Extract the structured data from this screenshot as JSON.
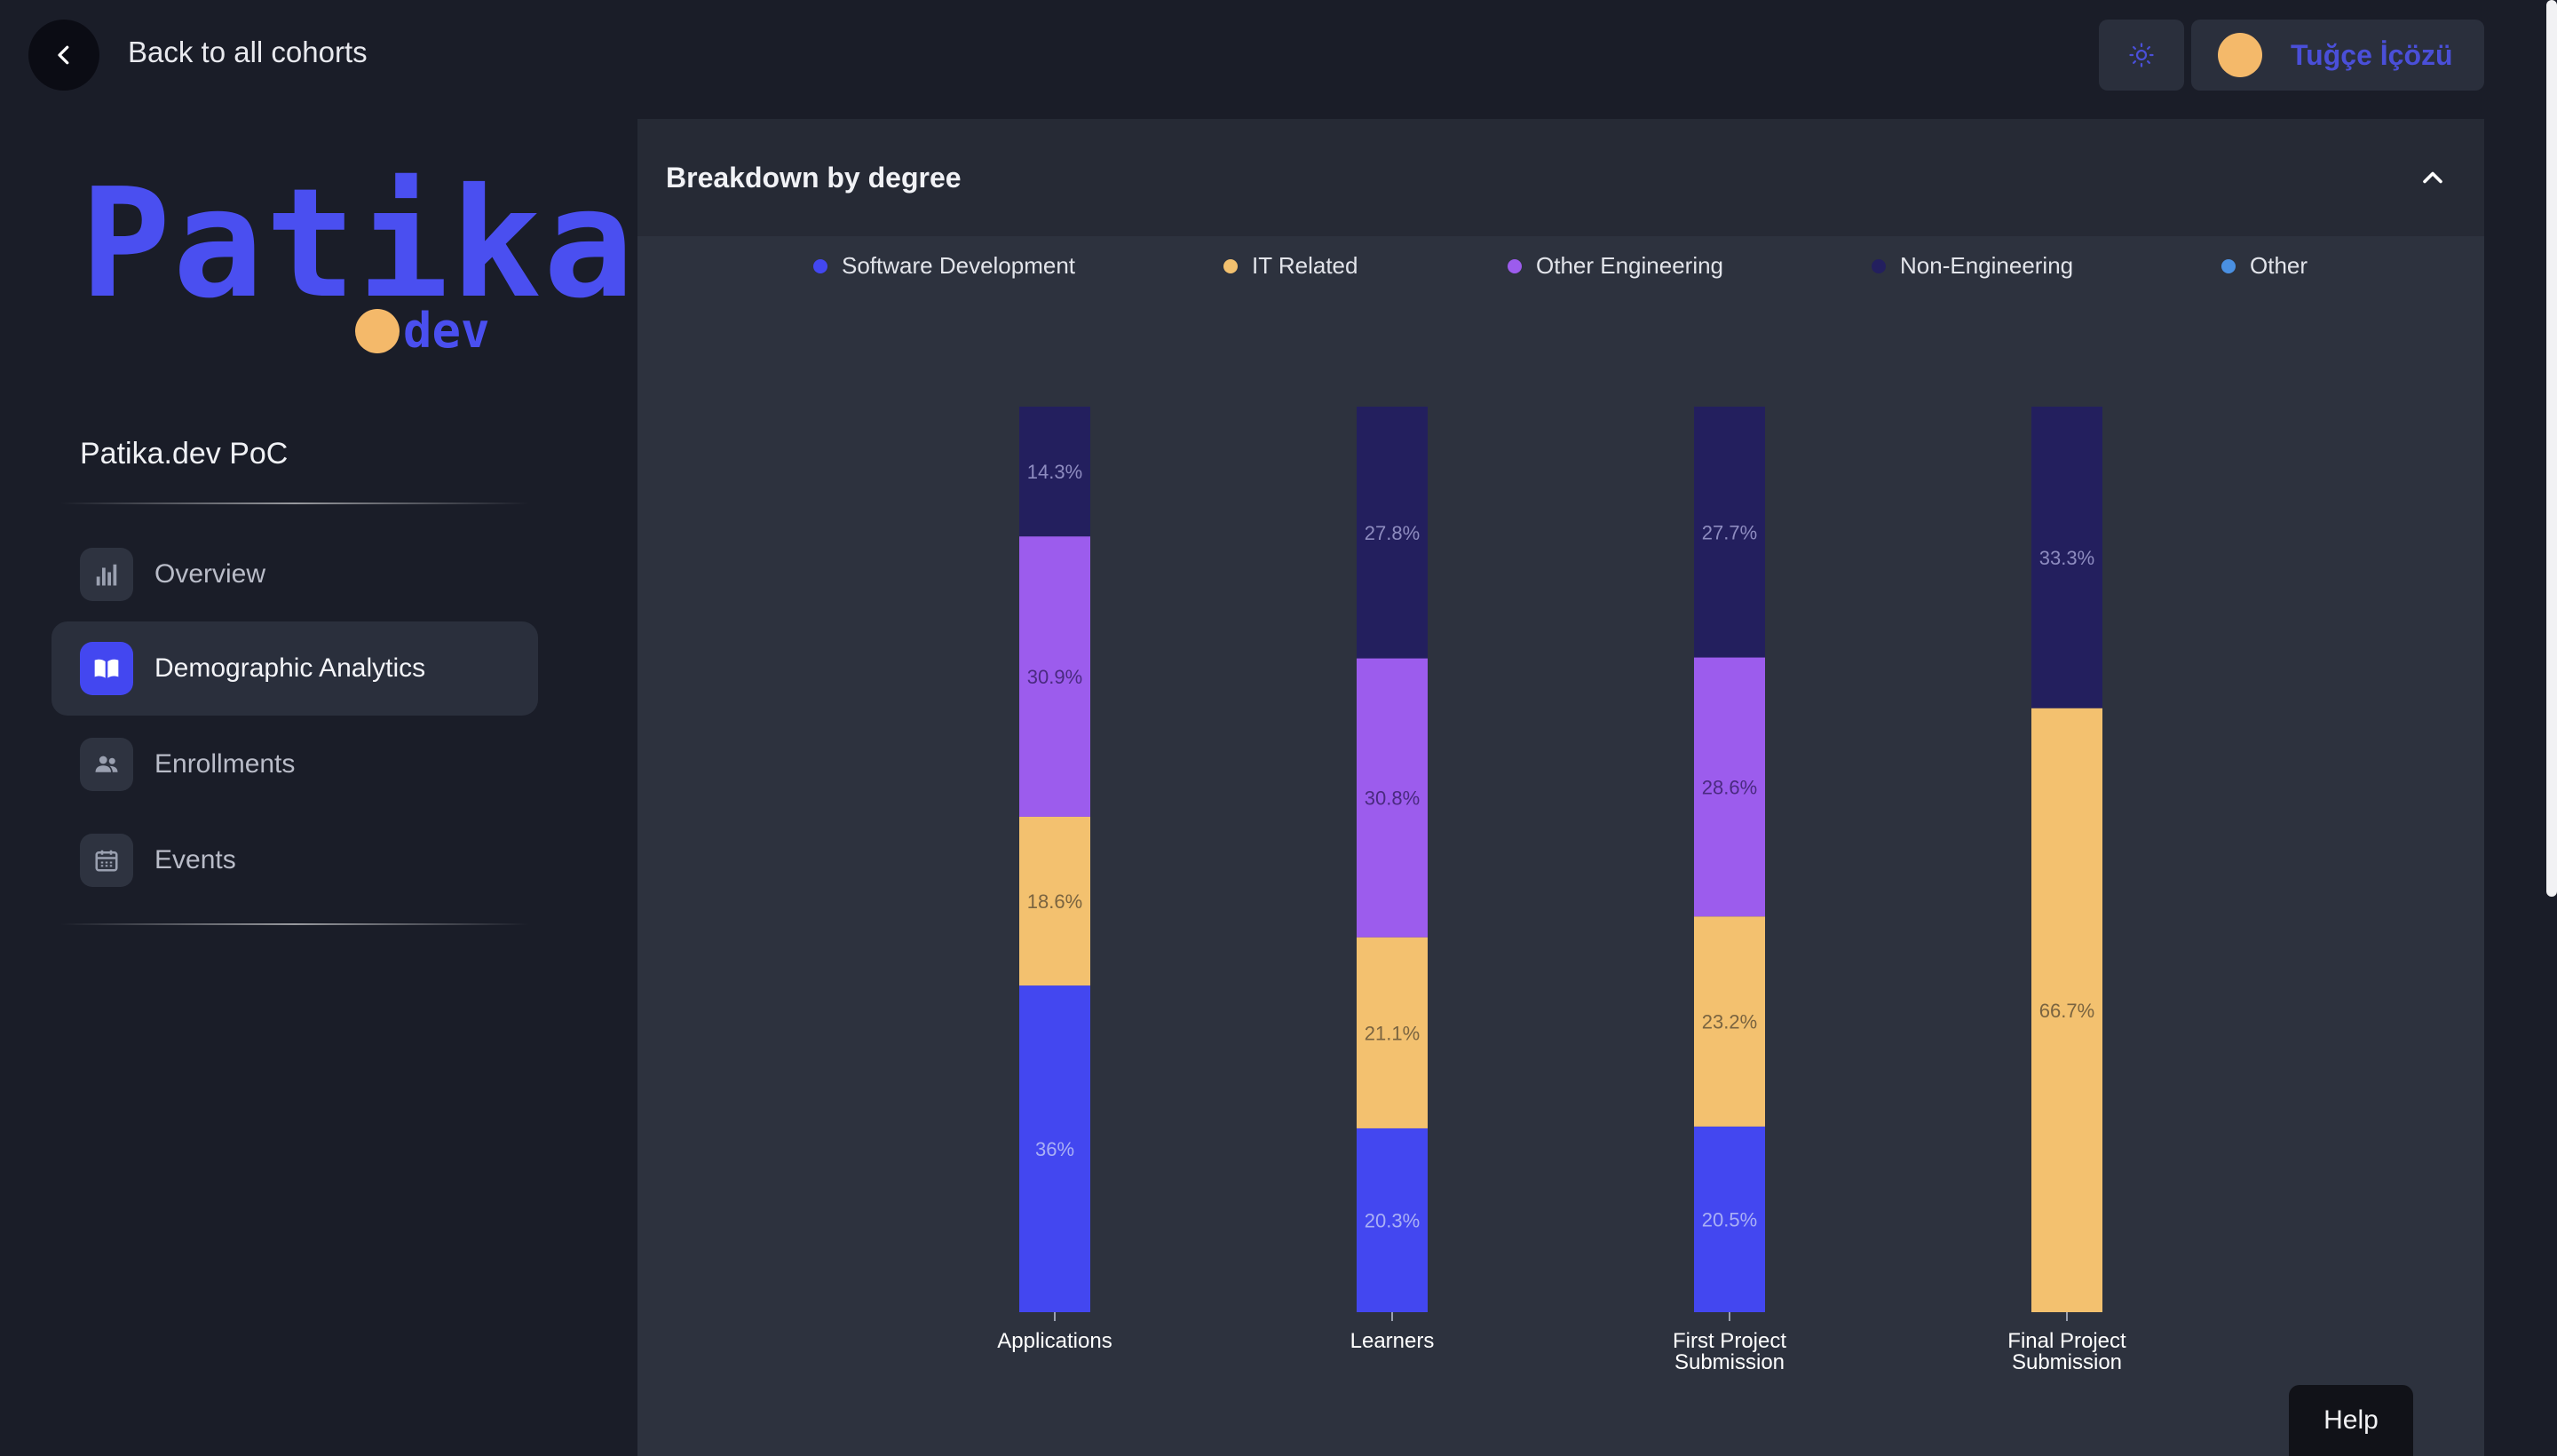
{
  "topbar": {
    "back_label": "Back to all cohorts",
    "user_name": "Tuğçe İçözü"
  },
  "sidebar": {
    "logo_word": "Patika",
    "logo_sub": "dev",
    "workspace_title": "Patika.dev PoC",
    "items": [
      {
        "label": "Overview",
        "icon": "bar-chart-icon",
        "active": false
      },
      {
        "label": "Demographic Analytics",
        "icon": "book-open-icon",
        "active": true
      },
      {
        "label": "Enrollments",
        "icon": "users-icon",
        "active": false
      },
      {
        "label": "Events",
        "icon": "calendar-icon",
        "active": false
      }
    ]
  },
  "panel": {
    "title": "Breakdown by degree"
  },
  "help_label": "Help",
  "colors": {
    "software_development": "#4347f0",
    "it_related": "#f3c16f",
    "other_engineering": "#9c5ced",
    "non_engineering": "#231f5e",
    "other": "#4a90e2"
  },
  "chart_data": {
    "type": "bar",
    "stacked": true,
    "normalized": true,
    "categories": [
      "Applications",
      "Learners",
      "First Project Submission",
      "Final Project Submission"
    ],
    "category_lines": [
      [
        "Applications"
      ],
      [
        "Learners"
      ],
      [
        "First Project",
        "Submission"
      ],
      [
        "Final Project",
        "Submission"
      ]
    ],
    "series": [
      {
        "name": "Software Development",
        "color": "#4347f0",
        "values": [
          36,
          20.3,
          20.5,
          0
        ],
        "labels": [
          "36%",
          "20.3%",
          "20.5%",
          ""
        ]
      },
      {
        "name": "IT Related",
        "color": "#f3c16f",
        "values": [
          18.6,
          21.1,
          23.2,
          66.7
        ],
        "labels": [
          "18.6%",
          "21.1%",
          "23.2%",
          "66.7%"
        ]
      },
      {
        "name": "Other Engineering",
        "color": "#9c5ced",
        "values": [
          30.9,
          30.8,
          28.6,
          0
        ],
        "labels": [
          "30.9%",
          "30.8%",
          "28.6%",
          ""
        ]
      },
      {
        "name": "Non-Engineering",
        "color": "#231f5e",
        "values": [
          14.3,
          27.8,
          27.7,
          33.3
        ],
        "labels": [
          "14.3%",
          "27.8%",
          "27.7%",
          "33.3%"
        ]
      },
      {
        "name": "Other",
        "color": "#4a90e2",
        "values": [
          0,
          0,
          0,
          0
        ],
        "labels": [
          "",
          "",
          "",
          ""
        ]
      }
    ],
    "legend": "top",
    "grid": false
  }
}
